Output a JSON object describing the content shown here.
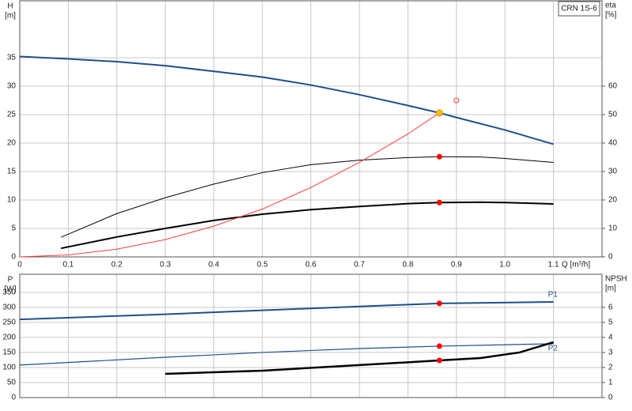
{
  "chart_data": [
    {
      "type": "line",
      "legend_text": "CRN 1S-6",
      "ylabel": "H",
      "yunit": "[m]",
      "y2label": "eta",
      "y2unit": "[%]",
      "xlabel": "Q [m³/h]",
      "xlim": [
        0,
        1.2
      ],
      "xticks": [
        0,
        0.1,
        0.2,
        0.3,
        0.4,
        0.5,
        0.6,
        0.7,
        0.8,
        0.9,
        {
          "value": 1,
          "label": "1.0"
        },
        1.1
      ],
      "show_xtick_labels": true,
      "ylim": [
        0,
        45
      ],
      "yticks": [
        0,
        5,
        10,
        15,
        20,
        25,
        30,
        35
      ],
      "y2lim": [
        0,
        90
      ],
      "y2ticks": [
        0,
        10,
        20,
        30,
        40,
        50,
        60
      ],
      "grid": true,
      "series": [
        {
          "color": "#1f4e8c",
          "width": 2,
          "axis": "y",
          "x": [
            0,
            0.1,
            0.2,
            0.3,
            0.4,
            0.5,
            0.6,
            0.7,
            0.8,
            0.865,
            0.9,
            1.0,
            1.1
          ],
          "values": [
            35.2,
            34.8,
            34.3,
            33.6,
            32.6,
            31.6,
            30.2,
            28.5,
            26.6,
            25.3,
            24.5,
            22.3,
            19.8
          ]
        },
        {
          "color": "#000000",
          "width": 1,
          "axis": "y2",
          "x": [
            0.085,
            0.2,
            0.3,
            0.4,
            0.5,
            0.6,
            0.7,
            0.8,
            0.865,
            0.95,
            1.0,
            1.1
          ],
          "values": [
            6.9,
            15.2,
            20.8,
            25.6,
            29.6,
            32.4,
            34.0,
            34.9,
            35.2,
            35.1,
            34.6,
            33.2
          ]
        },
        {
          "color": "#000000",
          "width": 2,
          "axis": "y2",
          "x": [
            0.085,
            0.2,
            0.3,
            0.4,
            0.5,
            0.6,
            0.7,
            0.8,
            0.865,
            0.95,
            1.0,
            1.1
          ],
          "values": [
            3.0,
            7.0,
            10.0,
            12.8,
            15.0,
            16.6,
            17.7,
            18.7,
            19.1,
            19.2,
            19.1,
            18.6
          ]
        },
        {
          "color": "#ff3b3b",
          "width": 1,
          "axis": "y",
          "x": [
            0,
            0.1,
            0.2,
            0.3,
            0.4,
            0.5,
            0.6,
            0.7,
            0.8,
            0.865
          ],
          "values": [
            0,
            0.34,
            1.35,
            3.04,
            5.4,
            8.4,
            12.2,
            16.6,
            21.6,
            25.3
          ]
        }
      ],
      "points": [
        {
          "x": 0.865,
          "y": 25.3,
          "axis": "y",
          "color": "#ffc000",
          "hollow": false,
          "r": 4
        },
        {
          "x": 0.865,
          "y": 35.2,
          "axis": "y2",
          "color": "#ff0000",
          "hollow": false,
          "r": 3
        },
        {
          "x": 0.865,
          "y": 19.1,
          "axis": "y2",
          "color": "#ff0000",
          "hollow": false,
          "r": 3
        },
        {
          "x": 0.9,
          "y": 27.5,
          "axis": "y",
          "color": "#ff3b3b",
          "hollow": true,
          "r": 3
        }
      ]
    },
    {
      "type": "line",
      "ylabel": "P",
      "yunit": "[W]",
      "y2label": "NPSH",
      "y2unit": "[m]",
      "xlim": [
        0,
        1.2
      ],
      "xticks": [
        0,
        0.1,
        0.2,
        0.3,
        0.4,
        0.5,
        0.6,
        0.7,
        0.8,
        0.9,
        1,
        1.1
      ],
      "show_xtick_labels": false,
      "ylim": [
        0,
        410
      ],
      "yticks": [
        0,
        50,
        100,
        150,
        200,
        250,
        300,
        350
      ],
      "y2lim": [
        0,
        8.2
      ],
      "y2ticks": [
        0,
        1,
        2,
        3,
        4,
        5,
        6
      ],
      "grid": true,
      "series": [
        {
          "name": "P1",
          "color": "#1f4e8c",
          "width": 2,
          "axis": "y",
          "x": [
            0,
            0.3,
            0.5,
            0.7,
            0.865,
            1.1
          ],
          "values": [
            260,
            277,
            290,
            303,
            313,
            318
          ]
        },
        {
          "name": "P2",
          "color": "#1f4e8c",
          "width": 1.2,
          "axis": "y",
          "x": [
            0,
            0.3,
            0.5,
            0.7,
            0.865,
            1.1
          ],
          "values": [
            108,
            134,
            150,
            163,
            171,
            179
          ]
        },
        {
          "color": "#000000",
          "width": 2.5,
          "axis": "y2",
          "x": [
            0.3,
            0.5,
            0.7,
            0.865,
            0.95,
            1.03,
            1.1
          ],
          "values": [
            1.58,
            1.79,
            2.16,
            2.47,
            2.63,
            3.0,
            3.68
          ]
        }
      ],
      "points": [
        {
          "x": 0.865,
          "y": 313,
          "axis": "y",
          "color": "#ff0000",
          "hollow": false,
          "r": 3
        },
        {
          "x": 0.865,
          "y": 171,
          "axis": "y",
          "color": "#ff0000",
          "hollow": false,
          "r": 3
        },
        {
          "x": 0.865,
          "y": 2.47,
          "axis": "y2",
          "color": "#ff0000",
          "hollow": false,
          "r": 3
        }
      ]
    }
  ]
}
